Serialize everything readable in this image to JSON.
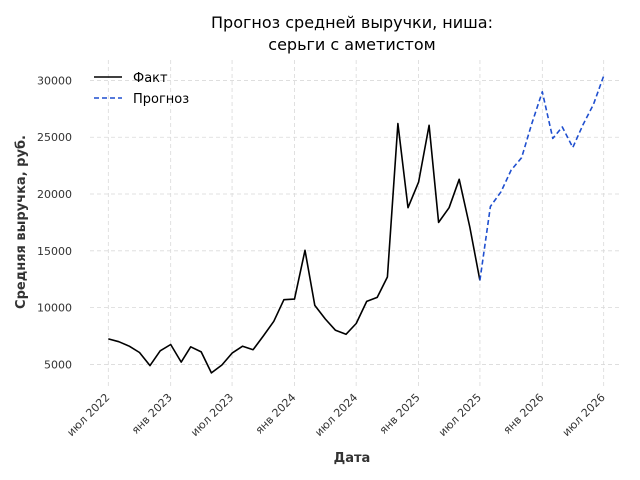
{
  "chart_data": {
    "type": "line",
    "title_line1": "Прогноз средней выручки, ниша:",
    "title_line2": "серьги с аметистом",
    "xlabel": "Дата",
    "ylabel": "Средняя выручка, руб.",
    "x_tick_labels": [
      "июл 2022",
      "янв 2023",
      "июл 2023",
      "янв 2024",
      "июл 2024",
      "янв 2025",
      "июл 2025",
      "янв 2026",
      "июл 2026"
    ],
    "y_ticks": [
      5000,
      10000,
      15000,
      20000,
      25000,
      30000
    ],
    "y_tick_labels": [
      "5000",
      "10000",
      "15000",
      "20000",
      "25000",
      "30000"
    ],
    "xlim": [
      "2022-05-08",
      "2026-08-24"
    ],
    "ylim": [
      3100,
      31800
    ],
    "grid": true,
    "legend_position": "top-left",
    "series": [
      {
        "name": "Факт",
        "color": "#000000",
        "dash": "solid",
        "x": [
          "2022-07",
          "2022-08",
          "2022-09",
          "2022-10",
          "2022-11",
          "2022-12",
          "2023-01",
          "2023-02",
          "2023-03",
          "2023-04",
          "2023-05",
          "2023-06",
          "2023-07",
          "2023-08",
          "2023-09",
          "2023-10",
          "2023-11",
          "2023-12",
          "2024-01",
          "2024-02",
          "2024-03",
          "2024-04",
          "2024-05",
          "2024-06",
          "2024-07",
          "2024-08",
          "2024-09",
          "2024-10",
          "2024-11",
          "2024-12",
          "2025-01",
          "2025-02",
          "2025-03",
          "2025-04",
          "2025-05",
          "2025-06",
          "2025-07"
        ],
        "values": [
          7250,
          7000,
          6600,
          6050,
          4900,
          6200,
          6750,
          5200,
          6550,
          6100,
          4250,
          4950,
          6000,
          6600,
          6300,
          7500,
          8800,
          10700,
          10750,
          15050,
          10200,
          9000,
          8000,
          7650,
          8600,
          10550,
          10900,
          12700,
          26200,
          18800,
          21050,
          26050,
          17500,
          18800,
          21300,
          17100,
          12400
        ]
      },
      {
        "name": "Прогноз",
        "color": "#1f4fcf",
        "dash": "dashed",
        "x": [
          "2025-07",
          "2025-08",
          "2025-09",
          "2025-10",
          "2025-11",
          "2025-12",
          "2026-01",
          "2026-02",
          "2026-03",
          "2026-04",
          "2026-05",
          "2026-06",
          "2026-07"
        ],
        "values": [
          12400,
          18900,
          20200,
          22100,
          23200,
          26200,
          29000,
          24900,
          25900,
          24100,
          26100,
          27900,
          30400
        ]
      }
    ]
  }
}
